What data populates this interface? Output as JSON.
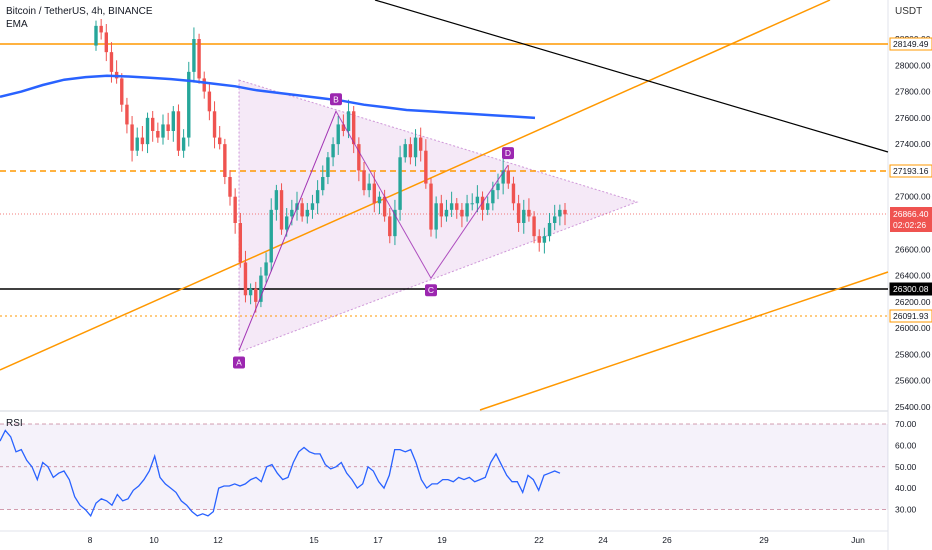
{
  "header": {
    "title": "Bitcoin / TetherUS, 4h, BINANCE",
    "indicator": "EMA",
    "currency": "USDT"
  },
  "colors": {
    "bull": "#26a69a",
    "bear": "#ef5350",
    "ema": "#2962ff",
    "orange": "#ff9800",
    "pattern": "#9c27b0",
    "rsi": "#2962ff",
    "black": "#000000"
  },
  "chart_data": [
    {
      "type": "candlestick",
      "title": "Bitcoin / TetherUS, 4h, BINANCE",
      "yticks": [
        25400,
        25600,
        25800,
        26000,
        26200,
        26400,
        26600,
        26800,
        27000,
        27200,
        27400,
        27600,
        27800,
        28000,
        28200
      ],
      "ylim": [
        25360,
        28350
      ],
      "xticks": [
        "8",
        "10",
        "12",
        "15",
        "17",
        "19",
        "22",
        "24",
        "26",
        "29",
        "Jun"
      ],
      "current_price": "26866.40",
      "countdown": "02:02:26",
      "price_tags": [
        "28149.49",
        "27193.16",
        "26300.08",
        "26091.93"
      ],
      "pattern_points": [
        {
          "label": "A",
          "price": 25830
        },
        {
          "label": "B",
          "price": 27650
        },
        {
          "label": "C",
          "price": 26380
        },
        {
          "label": "D",
          "price": 27240
        }
      ],
      "ema_values": [
        27760,
        27800,
        27850,
        27890,
        27910,
        27920,
        27915,
        27905,
        27895,
        27880,
        27860,
        27840,
        27810,
        27790,
        27770,
        27750,
        27730,
        27700,
        27680,
        27660,
        27650,
        27640,
        27630,
        27620,
        27610,
        27600
      ]
    },
    {
      "type": "line",
      "title": "RSI",
      "yticks": [
        "70.00",
        "60.00",
        "50.00",
        "40.00",
        "30.00"
      ],
      "ylim": [
        26,
        73
      ],
      "bands": [
        70,
        50,
        30
      ],
      "values": [
        62,
        67,
        64,
        57,
        58,
        53,
        50,
        44,
        52,
        50,
        45,
        47,
        48,
        44,
        36,
        32,
        30,
        27,
        33,
        35,
        34,
        32,
        37,
        34,
        35,
        39,
        41,
        44,
        48,
        55,
        45,
        42,
        40,
        38,
        34,
        32,
        29,
        27,
        28,
        27,
        29,
        40,
        41,
        41,
        42,
        41,
        42,
        44,
        45,
        43,
        50,
        51,
        47,
        44,
        45,
        52,
        57,
        59,
        57,
        56,
        56,
        51,
        49,
        50,
        52,
        47,
        44,
        40,
        42,
        50,
        48,
        43,
        40,
        46,
        58,
        58,
        57,
        58,
        52,
        44,
        40,
        42,
        42,
        44,
        44,
        43,
        45,
        44,
        45,
        43,
        44,
        45,
        52,
        56,
        51,
        46,
        43,
        43,
        38,
        46,
        44,
        39,
        46,
        47,
        48,
        47
      ]
    }
  ]
}
